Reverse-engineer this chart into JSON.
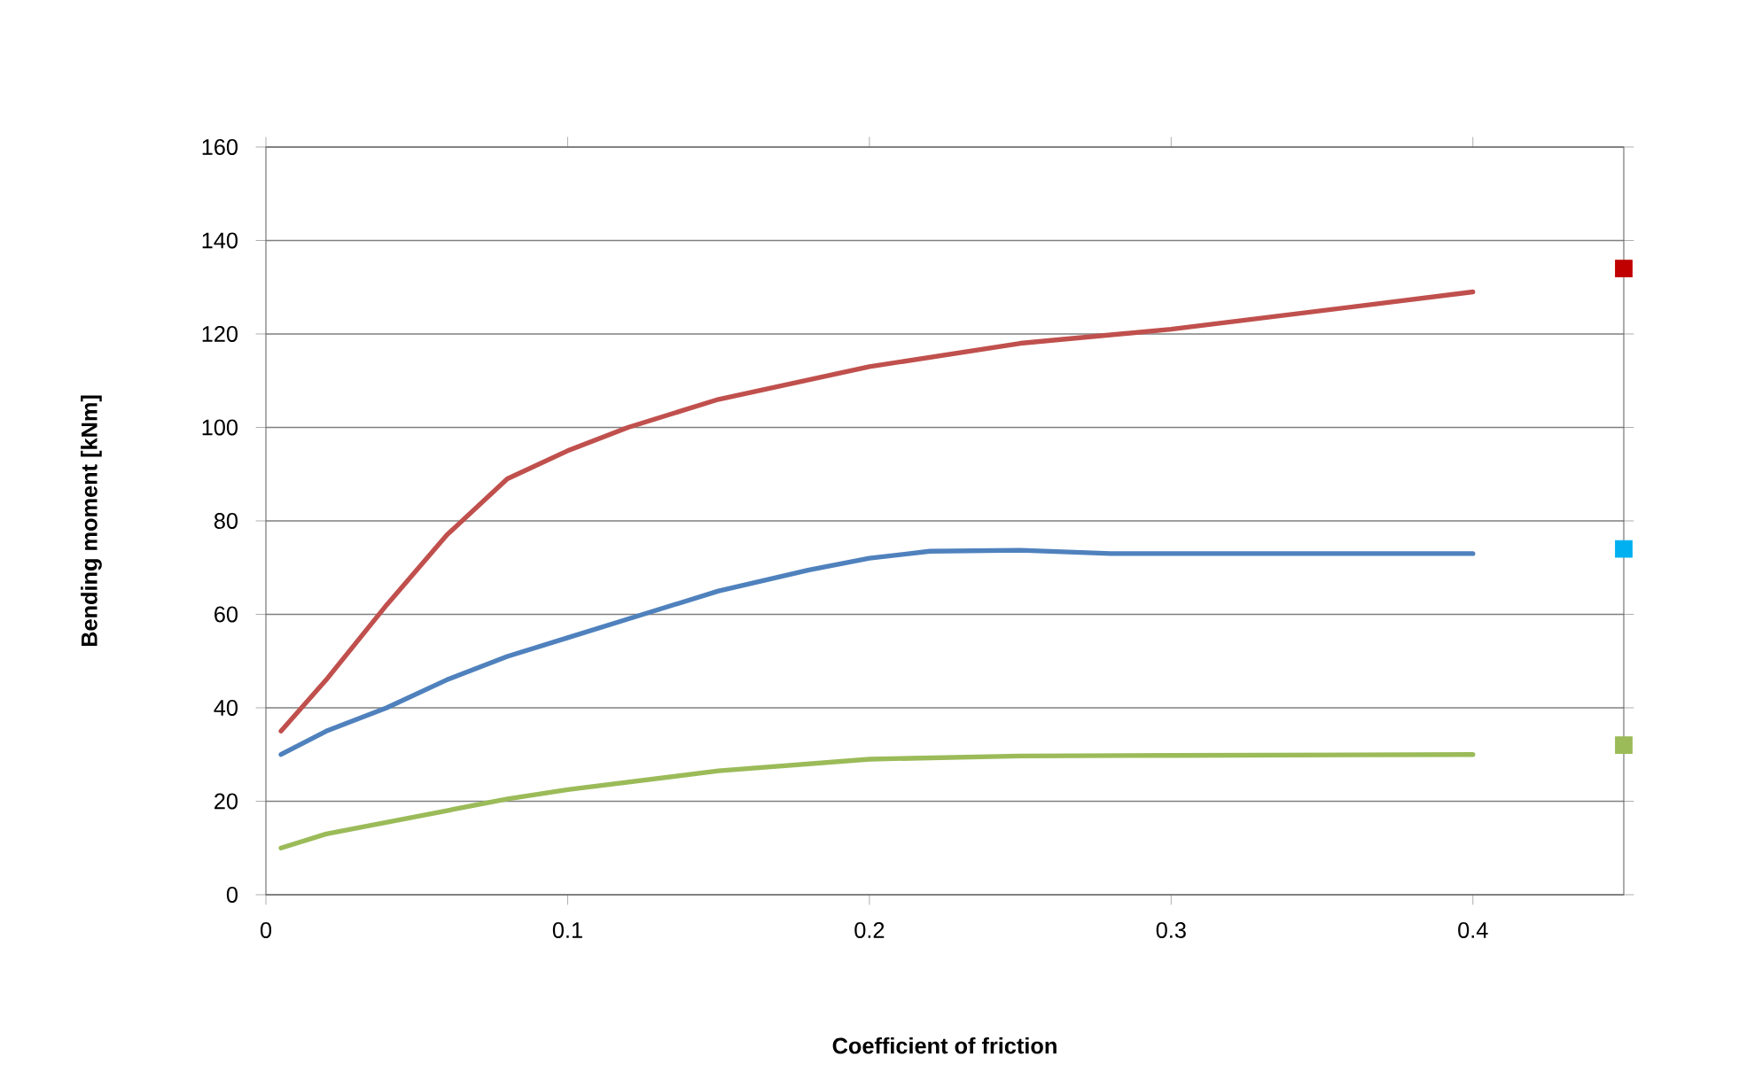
{
  "chart_data": {
    "type": "line",
    "xlabel": "Coefficient of friction",
    "ylabel": "Bending moment [kNm]",
    "xlim": [
      0,
      0.45
    ],
    "ylim": [
      0,
      160
    ],
    "xticks": [
      0,
      0.1,
      0.2,
      0.3,
      0.4
    ],
    "yticks": [
      0,
      20,
      40,
      60,
      80,
      100,
      120,
      140,
      160
    ],
    "grid": "y",
    "series": [
      {
        "color": "#c0504d",
        "x": [
          0.005,
          0.02,
          0.04,
          0.06,
          0.08,
          0.1,
          0.12,
          0.15,
          0.2,
          0.25,
          0.3,
          0.35,
          0.4
        ],
        "values": [
          35,
          46,
          62,
          77,
          89,
          95,
          100,
          106,
          113,
          118,
          121,
          125,
          129
        ]
      },
      {
        "color": "#4f81bd",
        "x": [
          0.005,
          0.02,
          0.04,
          0.06,
          0.08,
          0.1,
          0.12,
          0.15,
          0.18,
          0.2,
          0.22,
          0.25,
          0.28,
          0.3,
          0.4
        ],
        "values": [
          30,
          35,
          40,
          46,
          51,
          55,
          59,
          65,
          69.5,
          72,
          73.5,
          73.7,
          73,
          73,
          73
        ]
      },
      {
        "color": "#9bbb59",
        "x": [
          0.005,
          0.02,
          0.04,
          0.06,
          0.08,
          0.1,
          0.15,
          0.2,
          0.25,
          0.3,
          0.4
        ],
        "values": [
          10,
          13,
          15.5,
          18,
          20.5,
          22.5,
          26.5,
          29,
          29.7,
          29.8,
          30
        ]
      },
      {
        "type": "scatter",
        "marker": "square",
        "color": "#c00000",
        "x": [
          0.45
        ],
        "values": [
          134
        ]
      },
      {
        "type": "scatter",
        "marker": "square",
        "color": "#00b0f0",
        "x": [
          0.45
        ],
        "values": [
          74
        ]
      },
      {
        "type": "scatter",
        "marker": "square",
        "color": "#9bbb59",
        "x": [
          0.45
        ],
        "values": [
          32
        ]
      }
    ]
  }
}
